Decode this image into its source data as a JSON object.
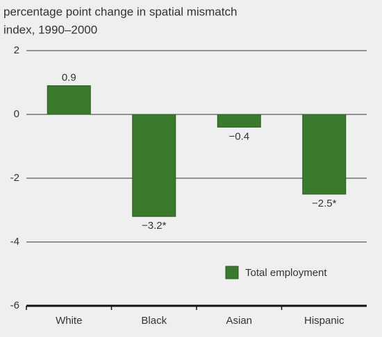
{
  "chart_data": {
    "type": "bar",
    "title": [
      "percentage point change in spatial mismatch",
      "index, 1990–2000"
    ],
    "categories": [
      "White",
      "Black",
      "Asian",
      "Hispanic"
    ],
    "series": [
      {
        "name": "Total employment",
        "color": "#3a7a2c",
        "values": [
          0.9,
          -3.2,
          -0.4,
          -2.5
        ],
        "value_labels": [
          "0.9",
          "−3.2*",
          "−0.4",
          "−2.5*"
        ]
      }
    ],
    "ylim": [
      -6,
      2
    ],
    "yticks": [
      2,
      0,
      -2,
      -4,
      -6
    ],
    "grid": true
  }
}
